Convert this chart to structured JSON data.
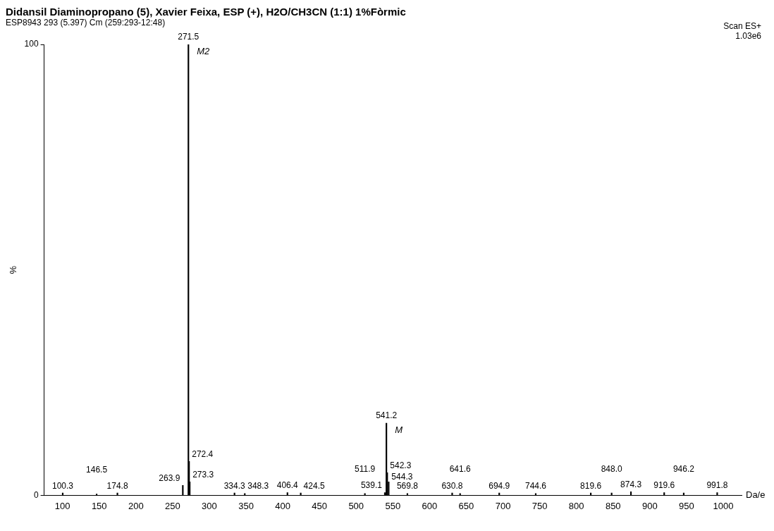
{
  "chart_data": {
    "type": "bar",
    "title": "Didansil Diaminopropano (5), Xavier Feixa, ESP (+), H2O/CH3CN (1:1) 1%Fòrmic",
    "subtitle": "ESP8943 293 (5.397) Cm (259:293-12:48)",
    "xlabel": "Da/e",
    "ylabel": "%",
    "x": [
      100.3,
      146.5,
      174.8,
      263.9,
      271.5,
      272.4,
      273.3,
      334.3,
      348.3,
      406.4,
      424.5,
      511.9,
      539.1,
      541.2,
      542.3,
      544.3,
      569.8,
      630.8,
      641.6,
      694.9,
      744.6,
      819.6,
      848.0,
      874.3,
      919.6,
      946.2,
      991.8
    ],
    "values": [
      0.5,
      0.3,
      0.5,
      2.2,
      100,
      7.5,
      3,
      0.5,
      0.4,
      0.6,
      0.5,
      0.4,
      0.6,
      16,
      5,
      3,
      0.4,
      0.5,
      0.4,
      0.5,
      0.4,
      0.5,
      0.5,
      0.8,
      0.6,
      0.5,
      0.6
    ],
    "color": "#000000",
    "xlim": [
      100,
      1000
    ],
    "xticks": [
      100,
      150,
      200,
      250,
      300,
      350,
      400,
      450,
      500,
      550,
      600,
      650,
      700,
      750,
      800,
      850,
      900,
      950,
      1000
    ],
    "ylim": [
      0,
      100
    ],
    "yticks": [
      0,
      100
    ],
    "annotations": [
      "Scan ES+",
      "1.03e6",
      {
        "text": "100.3",
        "x": 100.3,
        "y": 0.5
      },
      {
        "text": "146.5",
        "x": 146.5,
        "y": 0.3
      },
      {
        "text": "174.8",
        "x": 174.8,
        "y": 0.5
      },
      {
        "text": "263.9",
        "x": 263.9,
        "y": 2.2
      },
      {
        "text": "271.5",
        "x": 271.5,
        "y": 100
      },
      {
        "text": "272.4",
        "x": 272.4,
        "y": 7.5
      },
      {
        "text": "273.3",
        "x": 273.3,
        "y": 3
      },
      {
        "text": "334.3",
        "x": 334.3,
        "y": 0.5
      },
      {
        "text": "348.3",
        "x": 348.3,
        "y": 0.4
      },
      {
        "text": "406.4",
        "x": 406.4,
        "y": 0.6
      },
      {
        "text": "424.5",
        "x": 424.5,
        "y": 0.5
      },
      {
        "text": "511.9",
        "x": 511.9,
        "y": 0.4
      },
      {
        "text": "539.1",
        "x": 539.1,
        "y": 0.6
      },
      {
        "text": "541.2",
        "x": 541.2,
        "y": 16
      },
      {
        "text": "542.3",
        "x": 542.3,
        "y": 5
      },
      {
        "text": "544.3",
        "x": 544.3,
        "y": 3
      },
      {
        "text": "569.8",
        "x": 569.8,
        "y": 0.4
      },
      {
        "text": "630.8",
        "x": 630.8,
        "y": 0.5
      },
      {
        "text": "641.6",
        "x": 641.6,
        "y": 0.4
      },
      {
        "text": "694.9",
        "x": 694.9,
        "y": 0.5
      },
      {
        "text": "744.6",
        "x": 744.6,
        "y": 0.4
      },
      {
        "text": "819.6",
        "x": 819.6,
        "y": 0.5
      },
      {
        "text": "848.0",
        "x": 848.0,
        "y": 0.5
      },
      {
        "text": "874.3",
        "x": 874.3,
        "y": 0.8
      },
      {
        "text": "919.6",
        "x": 919.6,
        "y": 0.6
      },
      {
        "text": "946.2",
        "x": 946.2,
        "y": 0.5
      },
      {
        "text": "991.8",
        "x": 991.8,
        "y": 0.6
      },
      {
        "text": "M2",
        "x": 271.5,
        "y": 100
      },
      {
        "text": "M",
        "x": 541.2,
        "y": 16
      }
    ]
  }
}
